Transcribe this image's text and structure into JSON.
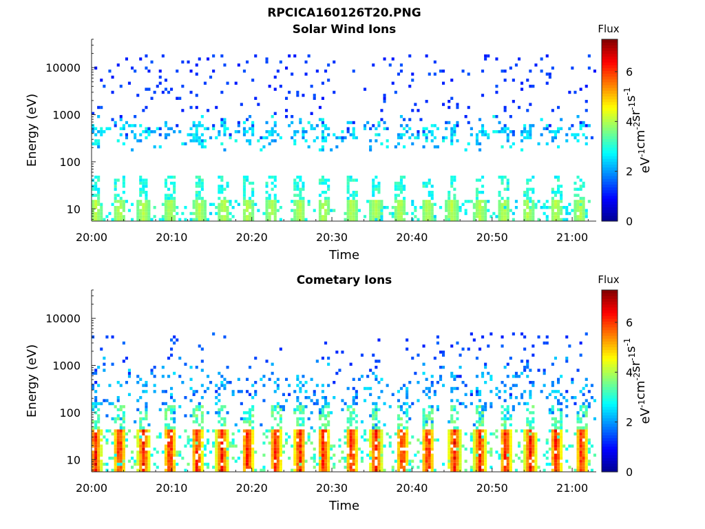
{
  "figure": {
    "filename": "RPCICA160126T20.PNG"
  },
  "colormap": [
    "#00008f",
    "#0000ff",
    "#0080ff",
    "#00ffff",
    "#80ff80",
    "#ffff00",
    "#ff8000",
    "#ff0000",
    "#800000"
  ],
  "chart_data": [
    {
      "type": "heatmap",
      "title": "Solar Wind Ions",
      "xlabel": "Time",
      "ylabel": "Energy (eV)",
      "x_ticks": [
        "20:00",
        "20:10",
        "20:20",
        "20:30",
        "20:40",
        "20:50",
        "21:00"
      ],
      "x_tick_minutes": [
        0,
        10,
        20,
        30,
        40,
        50,
        60
      ],
      "xlim_minutes": [
        0,
        63
      ],
      "y_scale": "log",
      "y_ticks": [
        "10",
        "100",
        "1000",
        "10000"
      ],
      "y_tick_values": [
        10,
        100,
        1000,
        10000
      ],
      "ylim": [
        5.5,
        40000
      ],
      "colorbar": {
        "title": "Flux",
        "label": "eV-1cm-2sr-1s-1",
        "ticks": [
          "0",
          "2",
          "4",
          "6"
        ],
        "tick_values": [
          0,
          2,
          4,
          6
        ],
        "range": [
          0,
          7.3
        ]
      },
      "features": {
        "background": {
          "e_min": 1000,
          "e_max": 20000,
          "flux": 1.3,
          "density": 0.05
        },
        "main": {
          "e_center": 400,
          "log_width": 0.18,
          "flux": 2.3,
          "density": 0.45
        },
        "low": {
          "e_max": 16,
          "flux_peak": 4.2,
          "band_flux": 3.4
        },
        "burst_minutes": [
          0.5,
          3.5,
          6.5,
          9.8,
          13.5,
          16.5,
          19.5,
          22.5,
          26,
          29,
          32.5,
          35.5,
          38.5,
          42,
          45,
          48.5,
          51.5,
          54.5,
          58,
          61
        ]
      }
    },
    {
      "type": "heatmap",
      "title": "Cometary Ions",
      "xlabel": "Time",
      "ylabel": "Energy (eV)",
      "x_ticks": [
        "20:00",
        "20:10",
        "20:20",
        "20:30",
        "20:40",
        "20:50",
        "21:00"
      ],
      "x_tick_minutes": [
        0,
        10,
        20,
        30,
        40,
        50,
        60
      ],
      "xlim_minutes": [
        0,
        63
      ],
      "y_scale": "log",
      "y_ticks": [
        "10",
        "100",
        "1000",
        "10000"
      ],
      "y_tick_values": [
        10,
        100,
        1000,
        10000
      ],
      "ylim": [
        5.5,
        40000
      ],
      "colorbar": {
        "title": "Flux",
        "label": "eV-1cm-2sr-1s-1",
        "ticks": [
          "0",
          "2",
          "4",
          "6"
        ],
        "tick_values": [
          0,
          2,
          4,
          6
        ],
        "range": [
          0,
          7.3
        ]
      },
      "features": {
        "background": {
          "e_min": 500,
          "e_max": 5000,
          "flux": 1.4,
          "density": 0.04
        },
        "main": {
          "e_center": 250,
          "log_width": 0.35,
          "flux": 2.0,
          "density": 0.25
        },
        "low": {
          "e_max": 45,
          "flux_peak": 6.8,
          "band_flux": 3.8
        },
        "burst_minutes": [
          0.5,
          3.5,
          6.5,
          9.8,
          13.2,
          16.3,
          19.5,
          23,
          26,
          29,
          32.5,
          35.5,
          38.8,
          42,
          45.3,
          48.5,
          51.7,
          54.8,
          58,
          61.2
        ]
      }
    }
  ]
}
